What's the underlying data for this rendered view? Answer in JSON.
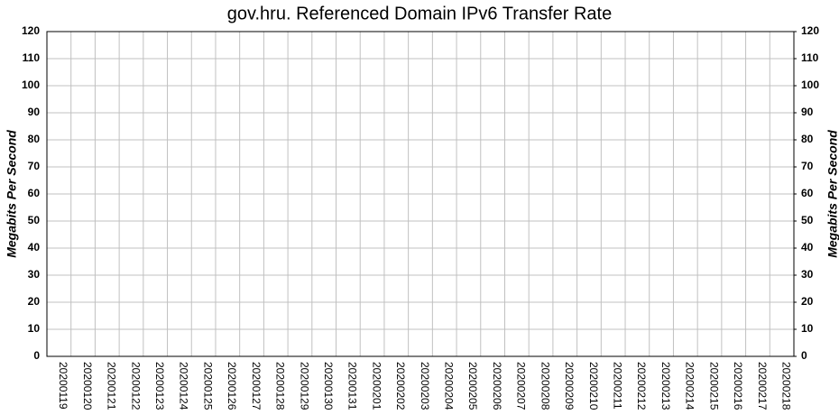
{
  "chart_data": {
    "type": "bar",
    "title": "gov.hru. Referenced Domain IPv6 Transfer Rate",
    "ylabel": "Megabits Per Second",
    "y2label": "Megabits Per Second",
    "categories": [
      "20200119",
      "20200120",
      "20200121",
      "20200122",
      "20200123",
      "20200124",
      "20200125",
      "20200126",
      "20200127",
      "20200128",
      "20200129",
      "20200130",
      "20200131",
      "20200201",
      "20200202",
      "20200203",
      "20200204",
      "20200205",
      "20200206",
      "20200207",
      "20200208",
      "20200209",
      "20200210",
      "20200211",
      "20200212",
      "20200213",
      "20200214",
      "20200215",
      "20200216",
      "20200217",
      "20200218"
    ],
    "values": [
      0,
      0,
      0,
      0,
      0,
      0,
      0,
      0,
      0,
      0,
      0,
      0,
      0,
      0,
      0,
      0,
      0,
      0,
      0,
      0,
      0,
      0,
      0,
      0,
      0,
      0,
      0,
      0,
      0,
      0,
      0
    ],
    "color": "#00008b",
    "ylim": [
      0,
      120
    ],
    "yticks": [
      0,
      10,
      20,
      30,
      40,
      50,
      60,
      70,
      80,
      90,
      100,
      110,
      120
    ],
    "y2lim": [
      0,
      120
    ],
    "y2ticks": [
      0,
      10,
      20,
      30,
      40,
      50,
      60,
      70,
      80,
      90,
      100,
      110,
      120
    ],
    "grid": true
  }
}
